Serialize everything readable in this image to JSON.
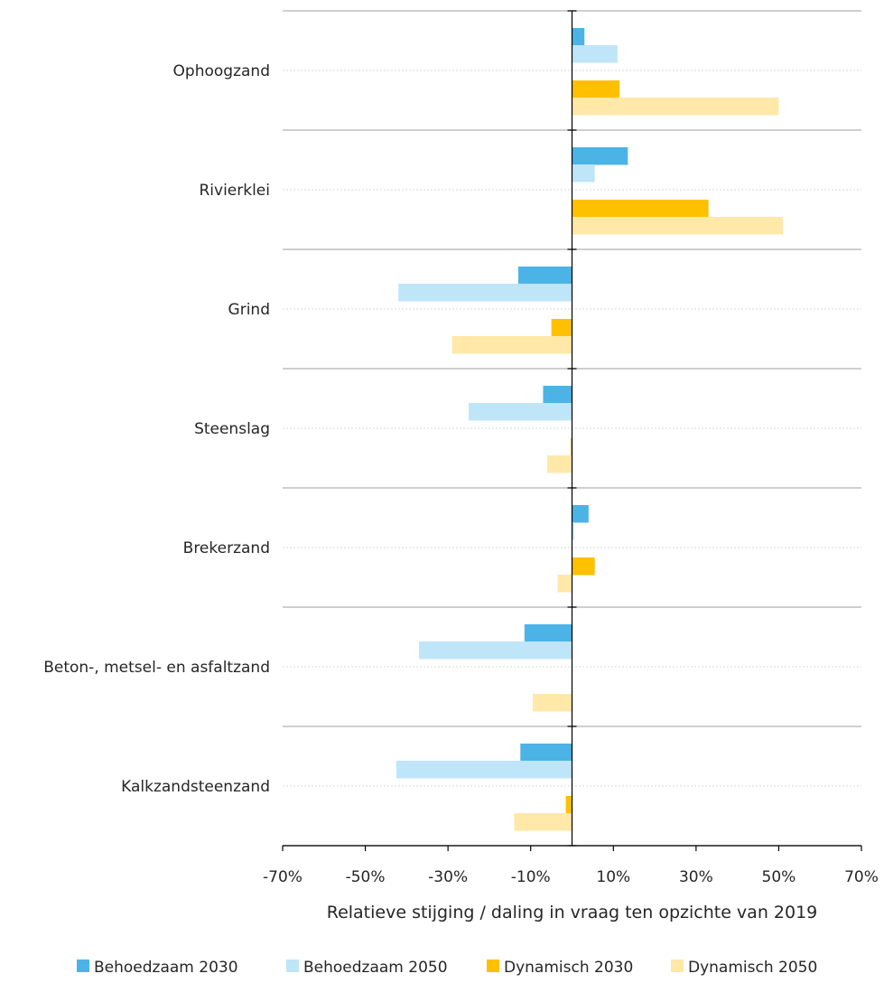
{
  "chart_data": {
    "type": "bar",
    "orientation": "horizontal",
    "categories": [
      "Ophoogzand",
      "Rivierklei",
      "Grind",
      "Steenslag",
      "Brekerzand",
      "Beton-, metsel- en asfaltzand",
      "Kalkzandsteenzand"
    ],
    "series": [
      {
        "name": "Behoedzaam 2030",
        "color": "#4cb3e6",
        "values": [
          3,
          13.5,
          -13,
          -7,
          4,
          -11.5,
          -12.5
        ]
      },
      {
        "name": "Behoedzaam 2050",
        "color": "#bfe5f9",
        "values": [
          11,
          5.5,
          -42,
          -25,
          0.5,
          -37,
          -42.5
        ]
      },
      {
        "name": "Dynamisch 2030",
        "color": "#ffc000",
        "values": [
          11.5,
          33,
          -5,
          -0.3,
          5.5,
          0,
          -1.5
        ]
      },
      {
        "name": "Dynamisch 2050",
        "color": "#ffe8a8",
        "values": [
          50,
          51,
          -29,
          -6,
          -3.5,
          -9.5,
          -14
        ]
      }
    ],
    "xlabel": "Relatieve stijging / daling in vraag ten opzichte van 2019",
    "xlim": [
      -70,
      70
    ],
    "xticks": [
      -70,
      -50,
      -30,
      -10,
      10,
      30,
      50,
      70
    ],
    "xtick_labels": [
      "-70%",
      "-50%",
      "-30%",
      "-10%",
      "10%",
      "30%",
      "50%",
      "70%"
    ],
    "grid": true,
    "legend_position": "bottom"
  }
}
